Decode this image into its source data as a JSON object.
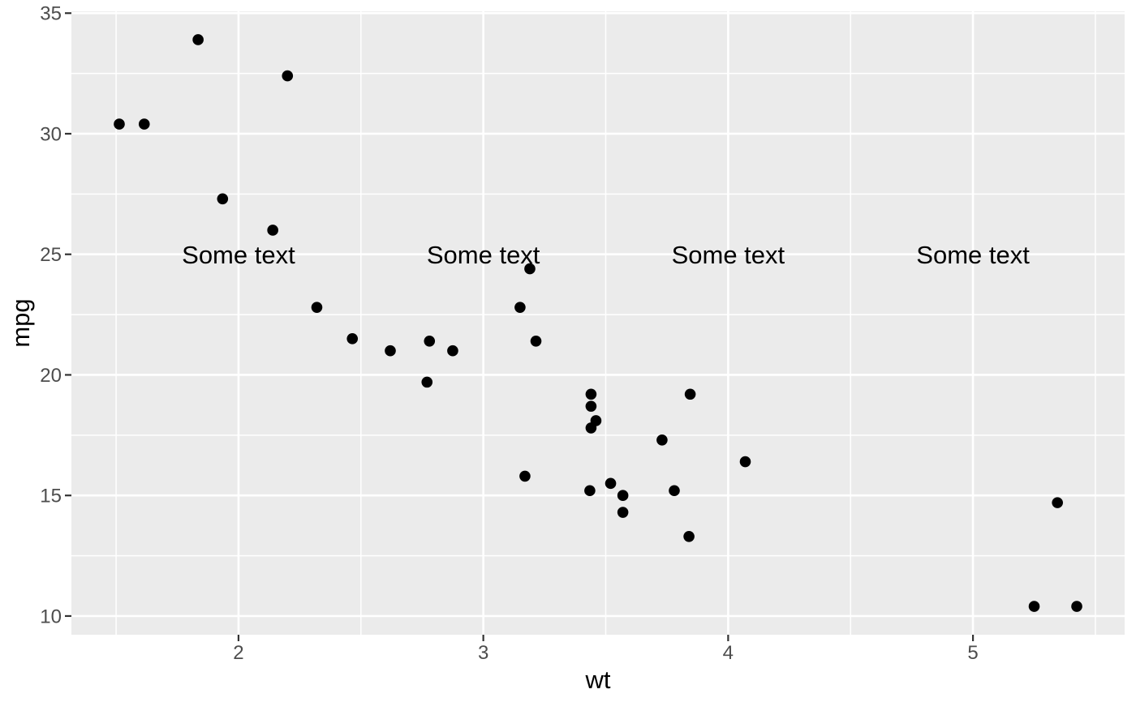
{
  "chart_data": {
    "type": "scatter",
    "title": "",
    "xlabel": "wt",
    "ylabel": "mpg",
    "xlim": [
      1.3175,
      5.6195
    ],
    "ylim": [
      9.225,
      35.075
    ],
    "x_major_ticks": [
      2,
      3,
      4,
      5
    ],
    "y_major_ticks": [
      10,
      15,
      20,
      25,
      30,
      35
    ],
    "x_minor_gridlines": [
      1.5,
      2.5,
      3.5,
      4.5,
      5.5
    ],
    "y_minor_gridlines": [
      12.5,
      17.5,
      22.5,
      27.5,
      32.5
    ],
    "grid": true,
    "legend": false,
    "x": [
      2.62,
      2.875,
      2.32,
      3.215,
      3.44,
      3.46,
      3.57,
      3.19,
      3.15,
      3.44,
      3.44,
      4.07,
      3.73,
      3.78,
      5.25,
      5.424,
      5.345,
      2.2,
      1.615,
      1.835,
      2.465,
      3.52,
      3.435,
      3.84,
      3.845,
      1.935,
      2.14,
      1.513,
      3.17,
      2.77,
      3.57,
      2.78
    ],
    "y": [
      21.0,
      21.0,
      22.8,
      21.4,
      18.7,
      18.1,
      14.3,
      24.4,
      22.8,
      19.2,
      17.8,
      16.4,
      17.3,
      15.2,
      10.4,
      10.4,
      14.7,
      32.4,
      30.4,
      33.9,
      21.5,
      15.5,
      15.2,
      13.3,
      19.2,
      27.3,
      26.0,
      30.4,
      15.8,
      19.7,
      15.0,
      21.4
    ],
    "annotations": [
      {
        "x": 2,
        "y": 25,
        "label": "Some text"
      },
      {
        "x": 3,
        "y": 25,
        "label": "Some text"
      },
      {
        "x": 4,
        "y": 25,
        "label": "Some text"
      },
      {
        "x": 5,
        "y": 25,
        "label": "Some text"
      }
    ],
    "colors": {
      "panel_bg": "#EBEBEB",
      "gridline": "#FFFFFF",
      "point": "#000000",
      "tick_label": "#4D4D4D",
      "tick_mark": "#333333",
      "axis_title": "#000000",
      "annotation": "#000000"
    }
  }
}
